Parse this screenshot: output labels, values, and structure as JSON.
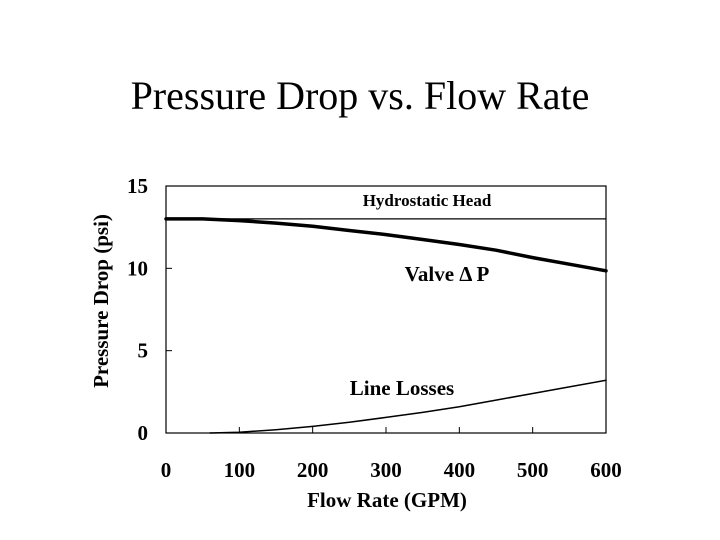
{
  "slide": {
    "title": "Pressure Drop vs. Flow Rate"
  },
  "chart_data": {
    "type": "line",
    "title": "Pressure Drop vs. Flow Rate",
    "xlabel": "Flow Rate (GPM)",
    "ylabel": "Pressure Drop (psi)",
    "xlim": [
      0,
      600
    ],
    "ylim": [
      0,
      15
    ],
    "xticks": [
      0,
      100,
      200,
      300,
      400,
      500,
      600
    ],
    "yticks": [
      0,
      5,
      10,
      15
    ],
    "grid": false,
    "line_color": "#000000",
    "series": [
      {
        "name": "Hydrostatic Head",
        "x": [
          0,
          600
        ],
        "y": [
          13.0,
          13.0
        ]
      },
      {
        "name": "Valve Δ P",
        "x": [
          0,
          50,
          100,
          150,
          200,
          250,
          300,
          350,
          400,
          450,
          500,
          550,
          600
        ],
        "y": [
          13.0,
          13.0,
          12.9,
          12.75,
          12.55,
          12.3,
          12.05,
          11.75,
          11.45,
          11.1,
          10.65,
          10.25,
          9.85
        ]
      },
      {
        "name": "Line Losses",
        "x": [
          60,
          100,
          150,
          200,
          250,
          300,
          350,
          400,
          450,
          500,
          550,
          600
        ],
        "y": [
          0.0,
          0.05,
          0.2,
          0.4,
          0.65,
          0.95,
          1.25,
          1.6,
          2.0,
          2.4,
          2.8,
          3.2
        ]
      }
    ],
    "annotations": {
      "hydrostatic": "Hydrostatic Head",
      "valve": "Valve Δ P",
      "line_losses": "Line Losses"
    }
  }
}
